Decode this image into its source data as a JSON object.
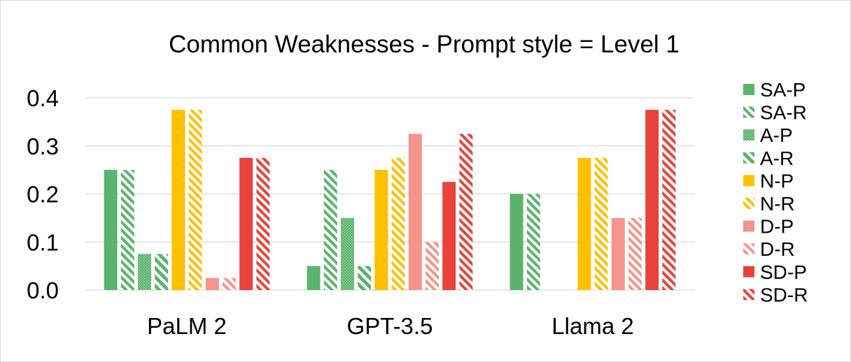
{
  "chart_data": {
    "type": "bar",
    "title": "Common Weaknesses - Prompt style = Level 1",
    "xlabel": "",
    "ylabel": "",
    "categories": [
      "PaLM 2",
      "GPT-3.5",
      "Llama 2"
    ],
    "ylim": [
      0,
      0.4
    ],
    "yticks": [
      "0.0",
      "0.1",
      "0.2",
      "0.3",
      "0.4"
    ],
    "grid": true,
    "legend_position": "right",
    "series": [
      {
        "name": "SA-P",
        "values": [
          0.25,
          0.05,
          0.2
        ],
        "color": "#5bb36e",
        "pattern": "solid"
      },
      {
        "name": "SA-R",
        "values": [
          0.25,
          0.25,
          0.2
        ],
        "color": "#5bb36e",
        "pattern": "hatch"
      },
      {
        "name": "A-P",
        "values": [
          0.075,
          0.15,
          0.0
        ],
        "color": "#5bb36e",
        "pattern": "dots"
      },
      {
        "name": "A-R",
        "values": [
          0.075,
          0.05,
          0.0
        ],
        "color": "#5bb36e",
        "pattern": "hatch-wide"
      },
      {
        "name": "N-P",
        "values": [
          0.375,
          0.25,
          0.275
        ],
        "color": "#ffc000",
        "pattern": "solid"
      },
      {
        "name": "N-R",
        "values": [
          0.375,
          0.275,
          0.275
        ],
        "color": "#ffc000",
        "pattern": "hatch"
      },
      {
        "name": "D-P",
        "values": [
          0.025,
          0.325,
          0.15
        ],
        "color": "#f4958d",
        "pattern": "solid"
      },
      {
        "name": "D-R",
        "values": [
          0.025,
          0.1,
          0.15
        ],
        "color": "#f4958d",
        "pattern": "hatch"
      },
      {
        "name": "SD-P",
        "values": [
          0.275,
          0.225,
          0.375
        ],
        "color": "#e8433b",
        "pattern": "solid"
      },
      {
        "name": "SD-R",
        "values": [
          0.275,
          0.325,
          0.375
        ],
        "color": "#e8433b",
        "pattern": "hatch"
      }
    ]
  }
}
